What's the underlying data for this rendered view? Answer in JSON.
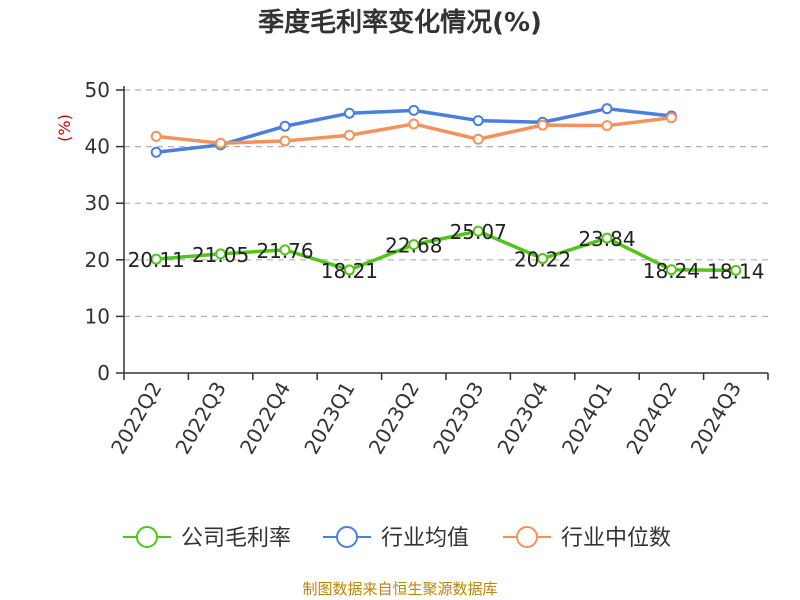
{
  "chart_data": {
    "type": "line",
    "title": "季度毛利率变化情况(%)",
    "ylabel": "(%)",
    "xlabel": "",
    "categories": [
      "2022Q2",
      "2022Q3",
      "2022Q4",
      "2023Q1",
      "2023Q2",
      "2023Q3",
      "2023Q4",
      "2024Q1",
      "2024Q2",
      "2024Q3"
    ],
    "ylim": [
      0,
      50
    ],
    "yticks": [
      0,
      10,
      20,
      30,
      40,
      50
    ],
    "grid": true,
    "legend_position": "bottom",
    "series": [
      {
        "name": "公司毛利率",
        "color": "#52c41a",
        "values": [
          20.11,
          21.05,
          21.76,
          18.21,
          22.68,
          25.07,
          20.22,
          23.84,
          18.24,
          18.14
        ],
        "labels": [
          "20.11",
          "21.05",
          "21.76",
          "18.21",
          "22.68",
          "25.07",
          "20.22",
          "23.84",
          "18.24",
          "18.14"
        ]
      },
      {
        "name": "行业均值",
        "color": "#4a7fdc",
        "values": [
          39.0,
          40.3,
          43.6,
          45.9,
          46.4,
          44.6,
          44.3,
          46.7,
          45.4,
          null
        ]
      },
      {
        "name": "行业中位数",
        "color": "#f5915a",
        "values": [
          41.8,
          40.6,
          41.0,
          42.0,
          44.0,
          41.3,
          43.8,
          43.7,
          45.1,
          null
        ]
      }
    ]
  },
  "source_note": "制图数据来自恒生聚源数据库"
}
